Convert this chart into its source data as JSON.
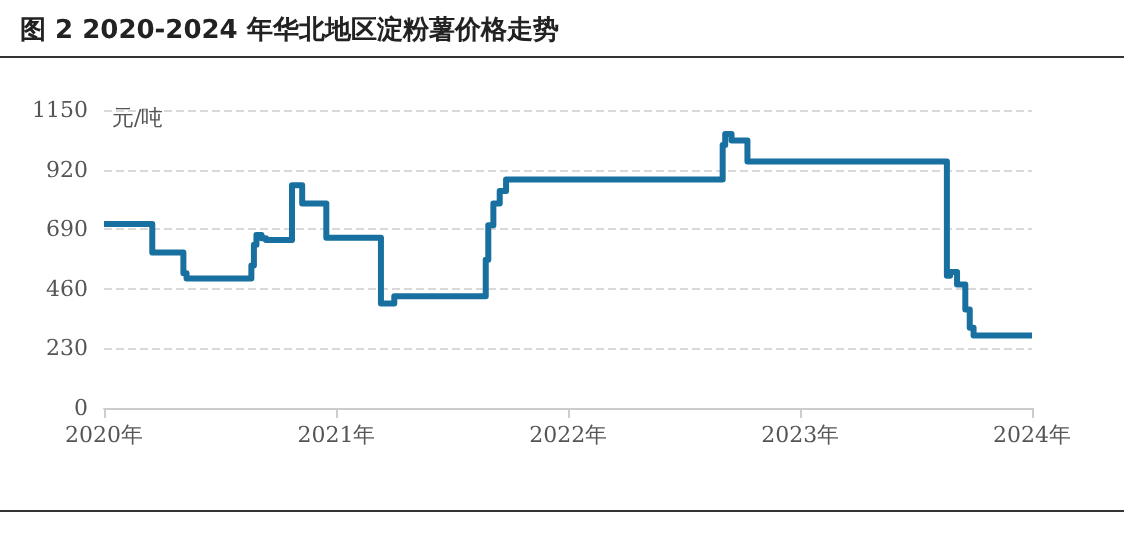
{
  "chart_data": {
    "type": "step",
    "title": "图 2 2020-2024 年华北地区淀粉薯价格走势",
    "ylabel": "元/吨",
    "x": [
      "2020-01-01",
      "2020-03-17",
      "2020-05-05",
      "2020-05-10",
      "2020-08-20",
      "2020-08-24",
      "2020-08-28",
      "2020-09-05",
      "2020-09-12",
      "2020-10-23",
      "2020-11-08",
      "2020-12-16",
      "2021-03-12",
      "2021-04-02",
      "2021-08-24",
      "2021-08-28",
      "2021-09-05",
      "2021-09-15",
      "2021-09-25",
      "2022-09-01",
      "2022-09-05",
      "2022-09-15",
      "2022-10-10",
      "2023-08-20",
      "2023-08-25",
      "2023-09-05",
      "2023-09-18",
      "2023-09-25",
      "2023-10-01",
      "2023-10-08",
      "2024-01-01"
    ],
    "series": [
      {
        "color": "#17709f",
        "values": [
          710,
          600,
          520,
          500,
          550,
          630,
          668,
          655,
          648,
          860,
          789,
          657,
          403,
          431,
          572,
          705,
          789,
          837,
          882,
          1015,
          1057,
          1032,
          951,
          510,
          525,
          477,
          380,
          310,
          280,
          280,
          280
        ]
      }
    ],
    "xlim": [
      "2020-01-01",
      "2024-01-01"
    ],
    "xticks": [
      {
        "value": "2020",
        "label": "2020年"
      },
      {
        "value": "2021",
        "label": "2021年"
      },
      {
        "value": "2022",
        "label": "2022年"
      },
      {
        "value": "2023",
        "label": "2023年"
      },
      {
        "value": "2024",
        "label": "2024年"
      }
    ],
    "ylim": [
      0,
      1150
    ],
    "yticks": [
      0,
      230,
      460,
      690,
      920,
      1150
    ],
    "grid": "y",
    "marker": "none",
    "line_style": "solid"
  }
}
